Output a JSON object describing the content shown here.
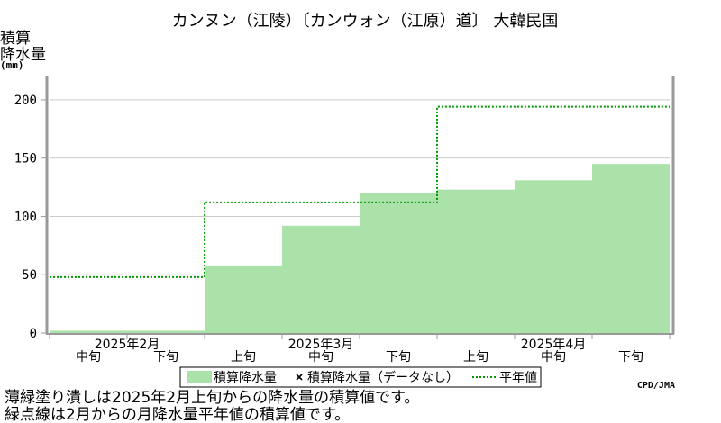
{
  "chart_data": {
    "type": "area",
    "title": "カンヌン（江陵）〔カンウォン（江原）道〕 大韓民国",
    "ylabel_lines": [
      "積算",
      "降水量"
    ],
    "yunit": "(mm)",
    "ylim": [
      0,
      220
    ],
    "yticks": [
      0,
      50,
      100,
      150,
      200
    ],
    "grid": true,
    "periods": [
      "2025年2月 中旬",
      "2025年2月 下旬",
      "2025年3月 上旬",
      "2025年3月 中旬",
      "2025年3月 下旬",
      "2025年4月 上旬",
      "2025年4月 中旬",
      "2025年4月 下旬"
    ],
    "x_labels": {
      "period": [
        "中旬",
        "下旬",
        "上旬",
        "中旬",
        "下旬",
        "上旬",
        "中旬",
        "下旬"
      ],
      "months": [
        {
          "label": "2025年2月",
          "start": 0,
          "end": 2
        },
        {
          "label": "2025年3月",
          "start": 2,
          "end": 5
        },
        {
          "label": "2025年4月",
          "start": 5,
          "end": 8
        }
      ]
    },
    "series": [
      {
        "name": "積算降水量",
        "style": "filled-area",
        "color": "#aae2aa",
        "values": [
          2,
          2,
          58,
          92,
          120,
          123,
          131,
          145
        ]
      },
      {
        "name": "積算降水量（データなし）",
        "style": "marker",
        "marker": "x",
        "values": []
      },
      {
        "name": "平年値",
        "style": "dotted-line",
        "color": "#009900",
        "values": [
          48,
          48,
          112,
          112,
          112,
          194,
          194,
          194
        ]
      }
    ],
    "legend_position": "bottom",
    "credit": "CPD/JMA"
  },
  "notes": [
    "薄緑塗り潰しは2025年2月上旬からの降水量の積算値です。",
    "緑点線は2月からの月降水量平年値の積算値です。"
  ]
}
